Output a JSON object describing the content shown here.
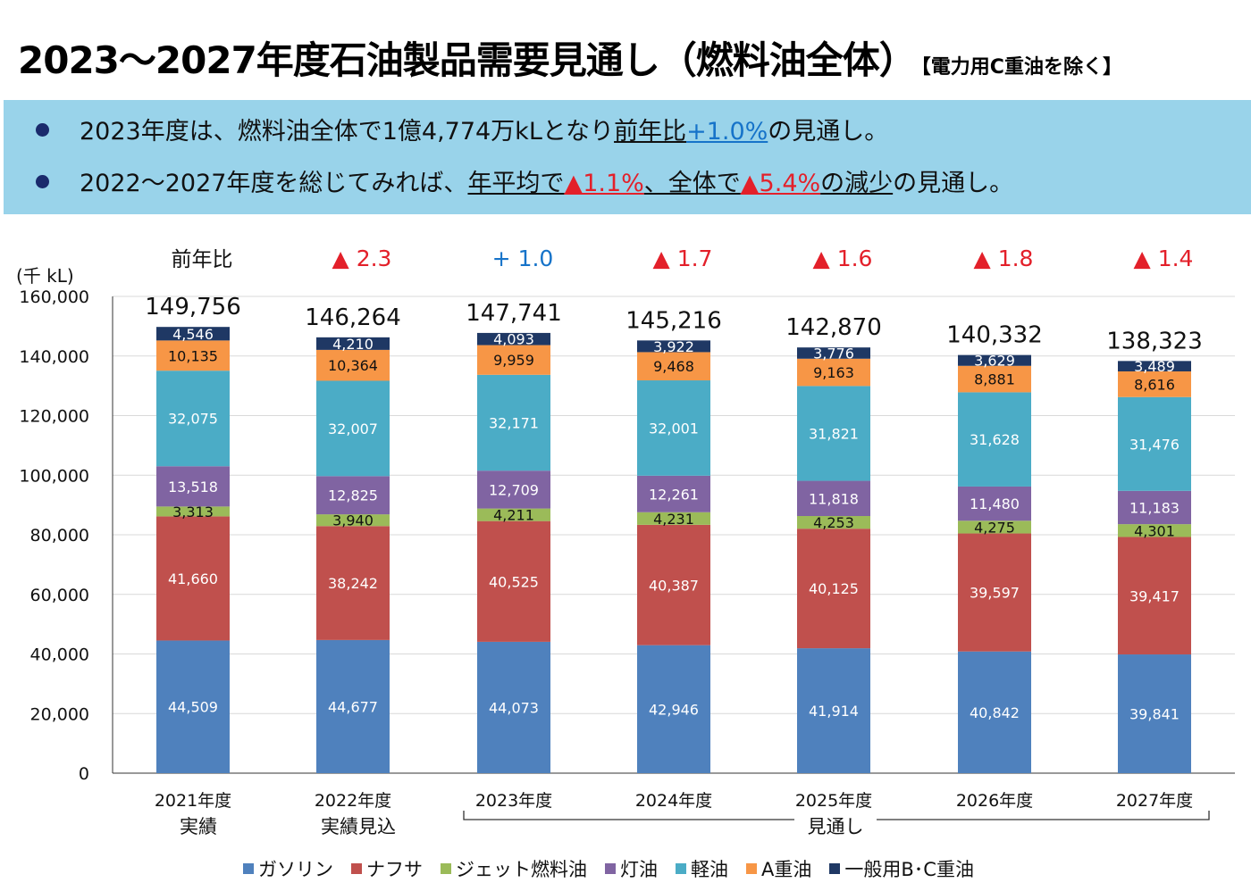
{
  "header": {
    "title": "2023～2027年度石油製品需要見通し（燃料油全体）",
    "note": "【電力用C重油を除く】"
  },
  "summary": {
    "line1": {
      "pre": "2023年度は、燃料油全体で1億4,774万kLとなり",
      "u1": "前年比",
      "v1": "+1.0%",
      "post": "の見通し。"
    },
    "line2": {
      "pre": "2022～2027年度を総じてみれば、",
      "u1": "年平均で",
      "v1": "▲1.1%",
      "u2": "、全体で",
      "v2": "▲5.4%",
      "u3": "の減少",
      "post": "の見通し。"
    }
  },
  "colors": {
    "gasoline": "#4f81bd",
    "naphtha": "#c0504d",
    "jet": "#9bbb59",
    "kerosene": "#8064a2",
    "diesel": "#4bacc6",
    "a_heavy": "#f79646",
    "bc_heavy": "#1f3864",
    "up": "#1673c9",
    "down": "#e3202a"
  },
  "chart_data": {
    "type": "bar",
    "stacked": true,
    "y_unit_label": "(千 kL)",
    "ylim": [
      0,
      160000
    ],
    "yticks": [
      0,
      20000,
      40000,
      60000,
      80000,
      100000,
      120000,
      140000,
      160000
    ],
    "ytick_labels": [
      "0",
      "20,000",
      "40,000",
      "60,000",
      "80,000",
      "100,000",
      "120,000",
      "140,000",
      "160,000"
    ],
    "grid": true,
    "legend_position": "bottom",
    "categories": [
      "2021年度",
      "2022年度",
      "2023年度",
      "2024年度",
      "2025年度",
      "2026年度",
      "2027年度"
    ],
    "category_sublabels": [
      "実績",
      "実績見込",
      "",
      "",
      "",
      "",
      ""
    ],
    "forecast_bracket_label": "見通し",
    "forecast_range": [
      "2023年度",
      "2027年度"
    ],
    "yoy_header": "前年比",
    "yoy_labels": [
      "",
      "▲ 2.3",
      "+ 1.0",
      "▲ 1.7",
      "▲ 1.6",
      "▲ 1.8",
      "▲ 1.4"
    ],
    "yoy_direction": [
      "",
      "down",
      "up",
      "down",
      "down",
      "down",
      "down"
    ],
    "totals": [
      149756,
      146264,
      147741,
      145216,
      142870,
      140332,
      138323
    ],
    "total_labels": [
      "149,756",
      "146,264",
      "147,741",
      "145,216",
      "142,870",
      "140,332",
      "138,323"
    ],
    "series": [
      {
        "name": "ガソリン",
        "color": "#4f81bd",
        "values": [
          44509,
          44677,
          44073,
          42946,
          41914,
          40842,
          39841
        ],
        "labels": [
          "44,509",
          "44,677",
          "44,073",
          "42,946",
          "41,914",
          "40,842",
          "39,841"
        ]
      },
      {
        "name": "ナフサ",
        "color": "#c0504d",
        "values": [
          41660,
          38242,
          40525,
          40387,
          40125,
          39597,
          39417
        ],
        "labels": [
          "41,660",
          "38,242",
          "40,525",
          "40,387",
          "40,125",
          "39,597",
          "39,417"
        ]
      },
      {
        "name": "ジェット燃料油",
        "color": "#9bbb59",
        "values": [
          3313,
          3940,
          4211,
          4231,
          4253,
          4275,
          4301
        ],
        "labels": [
          "3,313",
          "3,940",
          "4,211",
          "4,231",
          "4,253",
          "4,275",
          "4,301"
        ]
      },
      {
        "name": "灯油",
        "color": "#8064a2",
        "values": [
          13518,
          12825,
          12709,
          12261,
          11818,
          11480,
          11183
        ],
        "labels": [
          "13,518",
          "12,825",
          "12,709",
          "12,261",
          "11,818",
          "11,480",
          "11,183"
        ]
      },
      {
        "name": "軽油",
        "color": "#4bacc6",
        "values": [
          32075,
          32007,
          32171,
          32001,
          31821,
          31628,
          31476
        ],
        "labels": [
          "32,075",
          "32,007",
          "32,171",
          "32,001",
          "31,821",
          "31,628",
          "31,476"
        ]
      },
      {
        "name": "A重油",
        "color": "#f79646",
        "values": [
          10135,
          10364,
          9959,
          9468,
          9163,
          8881,
          8616
        ],
        "labels": [
          "10,135",
          "10,364",
          "9,959",
          "9,468",
          "9,163",
          "8,881",
          "8,616"
        ]
      },
      {
        "name": "一般用B･C重油",
        "color": "#1f3864",
        "values": [
          4546,
          4210,
          4093,
          3922,
          3776,
          3629,
          3489
        ],
        "labels": [
          "4,546",
          "4,210",
          "4,093",
          "3,922",
          "3,776",
          "3,629",
          "3,489"
        ]
      }
    ]
  }
}
